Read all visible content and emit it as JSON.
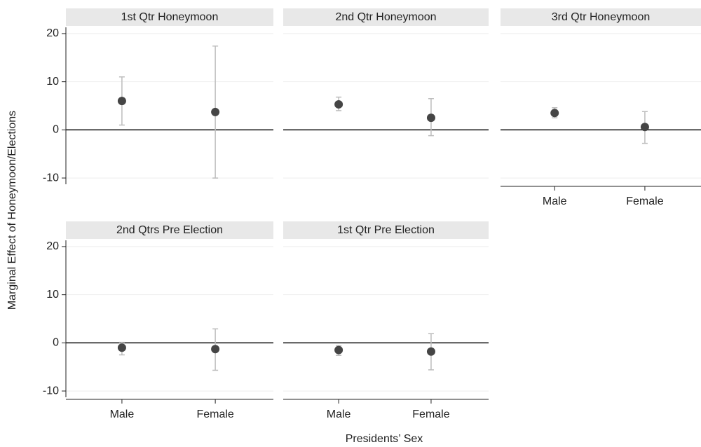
{
  "chart_data": [
    {
      "type": "errorbar",
      "title": "1st Qtr Honeymoon",
      "categories": [
        "Male",
        "Female"
      ],
      "series": [
        {
          "color": "#454545",
          "bar_color": "#bdbdbd",
          "values": [
            6.0,
            3.7
          ],
          "lower": [
            1.0,
            -10.0
          ],
          "upper": [
            11.0,
            17.4
          ]
        }
      ],
      "ylim": [
        -11.3,
        21.3
      ],
      "yticks": [
        -10,
        0,
        10,
        20
      ],
      "refline": 0,
      "grid": true,
      "y_axis": true,
      "x_axis": false
    },
    {
      "type": "errorbar",
      "title": "2nd Qtr Honeymoon",
      "categories": [
        "Male",
        "Female"
      ],
      "series": [
        {
          "color": "#454545",
          "bar_color": "#bdbdbd",
          "values": [
            5.3,
            2.5
          ],
          "lower": [
            4.0,
            -1.2
          ],
          "upper": [
            6.8,
            6.5
          ]
        }
      ],
      "ylim": [
        -11.3,
        21.3
      ],
      "yticks": [
        -10,
        0,
        10,
        20
      ],
      "refline": 0,
      "grid": true,
      "y_axis": false,
      "x_axis": false
    },
    {
      "type": "errorbar",
      "title": "3rd Qtr Honeymoon",
      "categories": [
        "Male",
        "Female"
      ],
      "series": [
        {
          "color": "#454545",
          "bar_color": "#bdbdbd",
          "values": [
            3.5,
            0.6
          ],
          "lower": [
            2.5,
            -2.8
          ],
          "upper": [
            4.6,
            3.8
          ]
        }
      ],
      "ylim": [
        -11.3,
        21.3
      ],
      "yticks": [
        -10,
        0,
        10,
        20
      ],
      "refline": 0,
      "grid": true,
      "y_axis": false,
      "x_axis": true
    },
    {
      "type": "errorbar",
      "title": "2nd Qtrs Pre Election",
      "categories": [
        "Male",
        "Female"
      ],
      "series": [
        {
          "color": "#454545",
          "bar_color": "#bdbdbd",
          "values": [
            -1.0,
            -1.3
          ],
          "lower": [
            -2.5,
            -5.7
          ],
          "upper": [
            0.1,
            2.9
          ]
        }
      ],
      "ylim": [
        -11.3,
        21.3
      ],
      "yticks": [
        -10,
        0,
        10,
        20
      ],
      "refline": 0,
      "grid": true,
      "y_axis": true,
      "x_axis": true
    },
    {
      "type": "errorbar",
      "title": "1st Qtr Pre Election",
      "categories": [
        "Male",
        "Female"
      ],
      "series": [
        {
          "color": "#454545",
          "bar_color": "#bdbdbd",
          "values": [
            -1.5,
            -1.8
          ],
          "lower": [
            -2.6,
            -5.6
          ],
          "upper": [
            -0.6,
            1.9
          ]
        }
      ],
      "ylim": [
        -11.3,
        21.3
      ],
      "yticks": [
        -10,
        0,
        10,
        20
      ],
      "refline": 0,
      "grid": true,
      "y_axis": false,
      "x_axis": true
    }
  ],
  "ylabel": "Marginal Effect of Honeymoon/Elections",
  "xlabel": "Presidents’ Sex"
}
